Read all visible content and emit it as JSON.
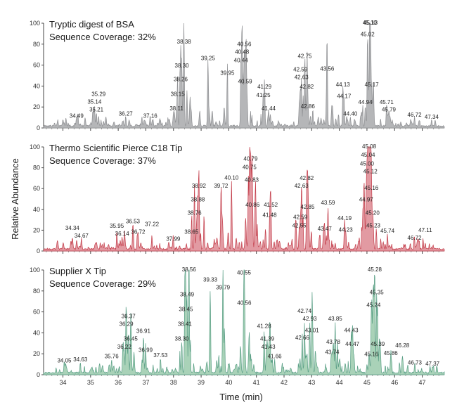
{
  "chart_data": {
    "type": "area",
    "xlabel": "Time (min)",
    "ylabel": "Relative Abundance",
    "xlim": [
      33.3,
      47.8
    ],
    "ylim": [
      0,
      100
    ],
    "x_ticks": [
      34,
      35,
      36,
      37,
      38,
      39,
      40,
      41,
      42,
      43,
      44,
      45,
      46,
      47
    ],
    "y_ticks": [
      0,
      20,
      40,
      60,
      80,
      100
    ],
    "panels": [
      {
        "title": "Tryptic digest of BSA",
        "subtitle": "Sequence Coverage: 32%",
        "color": "#8f9093",
        "fill": "#b5b6b8",
        "peaks": [
          {
            "label": "34.49",
            "x": 34.49,
            "y": 7
          },
          {
            "label": "35.14",
            "x": 35.14,
            "y": 11
          },
          {
            "label": "35.21",
            "x": 35.21,
            "y": 13
          },
          {
            "label": "35.29",
            "x": 35.29,
            "y": 10
          },
          {
            "label": "36.27",
            "x": 36.27,
            "y": 9
          },
          {
            "label": "37.16",
            "x": 37.16,
            "y": 7
          },
          {
            "label": "38.11",
            "x": 38.11,
            "y": 14
          },
          {
            "label": "38.15",
            "x": 38.15,
            "y": 28
          },
          {
            "label": "38.26",
            "x": 38.26,
            "y": 42
          },
          {
            "label": "38.30",
            "x": 38.3,
            "y": 55
          },
          {
            "label": "38.38",
            "x": 38.38,
            "y": 78
          },
          {
            "label": "39.25",
            "x": 39.25,
            "y": 62
          },
          {
            "label": "39.95",
            "x": 39.95,
            "y": 48
          },
          {
            "label": "40.44",
            "x": 40.44,
            "y": 60
          },
          {
            "label": "40.48",
            "x": 40.48,
            "y": 68
          },
          {
            "label": "40.56",
            "x": 40.56,
            "y": 62
          },
          {
            "label": "40.59",
            "x": 40.59,
            "y": 40
          },
          {
            "label": "41.25",
            "x": 41.25,
            "y": 27
          },
          {
            "label": "41.29",
            "x": 41.29,
            "y": 35
          },
          {
            "label": "41.44",
            "x": 41.44,
            "y": 14
          },
          {
            "label": "42.59",
            "x": 42.59,
            "y": 32
          },
          {
            "label": "42.63",
            "x": 42.63,
            "y": 44
          },
          {
            "label": "42.75",
            "x": 42.75,
            "y": 64
          },
          {
            "label": "42.82",
            "x": 42.82,
            "y": 35
          },
          {
            "label": "42.86",
            "x": 42.86,
            "y": 16
          },
          {
            "label": "43.56",
            "x": 43.56,
            "y": 52
          },
          {
            "label": "44.13",
            "x": 44.13,
            "y": 37
          },
          {
            "label": "44.17",
            "x": 44.17,
            "y": 26
          },
          {
            "label": "44.40",
            "x": 44.4,
            "y": 9
          },
          {
            "label": "44.94",
            "x": 44.94,
            "y": 20
          },
          {
            "label": "45.02",
            "x": 45.02,
            "y": 85
          },
          {
            "label": "45.10",
            "x": 45.1,
            "y": 100
          },
          {
            "label": "45.13",
            "x": 45.13,
            "y": 82
          },
          {
            "label": "45.17",
            "x": 45.17,
            "y": 37
          },
          {
            "label": "45.71",
            "x": 45.71,
            "y": 20
          },
          {
            "label": "45.79",
            "x": 45.79,
            "y": 13
          },
          {
            "label": "46.72",
            "x": 46.72,
            "y": 8
          },
          {
            "label": "47.34",
            "x": 47.34,
            "y": 6
          }
        ]
      },
      {
        "title": "Thermo Scientific Pierce C18 Tip",
        "subtitle": "Sequence Coverage: 37%",
        "color": "#c33d4a",
        "fill": "#e29aa2",
        "peaks": [
          {
            "label": "34.34",
            "x": 34.34,
            "y": 8
          },
          {
            "label": "34.67",
            "x": 34.67,
            "y": 10
          },
          {
            "label": "35.95",
            "x": 35.95,
            "y": 8
          },
          {
            "label": "36.14",
            "x": 36.14,
            "y": 12
          },
          {
            "label": "36.53",
            "x": 36.53,
            "y": 24
          },
          {
            "label": "36.72",
            "x": 36.72,
            "y": 14
          },
          {
            "label": "37.22",
            "x": 37.22,
            "y": 13
          },
          {
            "label": "37.99",
            "x": 37.99,
            "y": 7
          },
          {
            "label": "38.65",
            "x": 38.65,
            "y": 14
          },
          {
            "label": "38.76",
            "x": 38.76,
            "y": 32
          },
          {
            "label": "38.88",
            "x": 38.88,
            "y": 45
          },
          {
            "label": "38.92",
            "x": 38.92,
            "y": 58
          },
          {
            "label": "39.72",
            "x": 39.72,
            "y": 58
          },
          {
            "label": "40.10",
            "x": 40.1,
            "y": 66
          },
          {
            "label": "40.75",
            "x": 40.75,
            "y": 76
          },
          {
            "label": "40.79",
            "x": 40.79,
            "y": 84
          },
          {
            "label": "40.83",
            "x": 40.83,
            "y": 64
          },
          {
            "label": "40.86",
            "x": 40.86,
            "y": 40
          },
          {
            "label": "41.48",
            "x": 41.48,
            "y": 30
          },
          {
            "label": "41.52",
            "x": 41.52,
            "y": 40
          },
          {
            "label": "42.55",
            "x": 42.55,
            "y": 20
          },
          {
            "label": "42.59",
            "x": 42.59,
            "y": 28
          },
          {
            "label": "42.63",
            "x": 42.63,
            "y": 58
          },
          {
            "label": "42.82",
            "x": 42.82,
            "y": 58
          },
          {
            "label": "42.85",
            "x": 42.85,
            "y": 38
          },
          {
            "label": "43.47",
            "x": 43.47,
            "y": 17
          },
          {
            "label": "43.59",
            "x": 43.59,
            "y": 42
          },
          {
            "label": "44.19",
            "x": 44.19,
            "y": 27
          },
          {
            "label": "44.23",
            "x": 44.23,
            "y": 16
          },
          {
            "label": "44.97",
            "x": 44.97,
            "y": 45
          },
          {
            "label": "45.00",
            "x": 45.0,
            "y": 70
          },
          {
            "label": "45.04",
            "x": 45.04,
            "y": 88
          },
          {
            "label": "45.08",
            "x": 45.08,
            "y": 100
          },
          {
            "label": "45.12",
            "x": 45.12,
            "y": 72
          },
          {
            "label": "45.16",
            "x": 45.16,
            "y": 56
          },
          {
            "label": "45.20",
            "x": 45.2,
            "y": 32
          },
          {
            "label": "45.23",
            "x": 45.23,
            "y": 20
          },
          {
            "label": "45.74",
            "x": 45.74,
            "y": 15
          },
          {
            "label": "46.72",
            "x": 46.72,
            "y": 8
          },
          {
            "label": "47.11",
            "x": 47.11,
            "y": 6
          }
        ]
      },
      {
        "title": "Supplier X Tip",
        "subtitle": "Sequence Coverage: 29%",
        "color": "#5a9f86",
        "fill": "#a9d2b8",
        "peaks": [
          {
            "label": "34.05",
            "x": 34.05,
            "y": 9
          },
          {
            "label": "34.63",
            "x": 34.63,
            "y": 10
          },
          {
            "label": "35.76",
            "x": 35.76,
            "y": 13
          },
          {
            "label": "36.22",
            "x": 36.22,
            "y": 22
          },
          {
            "label": "36.29",
            "x": 36.29,
            "y": 44
          },
          {
            "label": "36.45",
            "x": 36.45,
            "y": 30
          },
          {
            "label": "36.37",
            "x": 36.37,
            "y": 40
          },
          {
            "label": "36.91",
            "x": 36.91,
            "y": 26
          },
          {
            "label": "36.99",
            "x": 36.99,
            "y": 19
          },
          {
            "label": "37.53",
            "x": 37.53,
            "y": 14
          },
          {
            "label": "38.30",
            "x": 38.3,
            "y": 30
          },
          {
            "label": "38.41",
            "x": 38.41,
            "y": 44
          },
          {
            "label": "38.45",
            "x": 38.45,
            "y": 58
          },
          {
            "label": "38.49",
            "x": 38.49,
            "y": 72
          },
          {
            "label": "38.56",
            "x": 38.56,
            "y": 100
          },
          {
            "label": "39.33",
            "x": 39.33,
            "y": 78
          },
          {
            "label": "39.79",
            "x": 39.79,
            "y": 79
          },
          {
            "label": "40.55",
            "x": 40.55,
            "y": 93
          },
          {
            "label": "40.56",
            "x": 40.56,
            "y": 64
          },
          {
            "label": "41.28",
            "x": 41.28,
            "y": 42
          },
          {
            "label": "41.39",
            "x": 41.39,
            "y": 30
          },
          {
            "label": "41.43",
            "x": 41.43,
            "y": 22
          },
          {
            "label": "41.66",
            "x": 41.66,
            "y": 13
          },
          {
            "label": "42.66",
            "x": 42.66,
            "y": 31
          },
          {
            "label": "42.74",
            "x": 42.74,
            "y": 48
          },
          {
            "label": "42.93",
            "x": 42.93,
            "y": 49
          },
          {
            "label": "43.01",
            "x": 43.01,
            "y": 38
          },
          {
            "label": "43.78",
            "x": 43.78,
            "y": 27
          },
          {
            "label": "43.74",
            "x": 43.74,
            "y": 17
          },
          {
            "label": "43.85",
            "x": 43.85,
            "y": 49
          },
          {
            "label": "44.43",
            "x": 44.43,
            "y": 38
          },
          {
            "label": "44.47",
            "x": 44.47,
            "y": 25
          },
          {
            "label": "45.16",
            "x": 45.16,
            "y": 15
          },
          {
            "label": "45.24",
            "x": 45.24,
            "y": 62
          },
          {
            "label": "45.28",
            "x": 45.28,
            "y": 100
          },
          {
            "label": "45.35",
            "x": 45.35,
            "y": 74
          },
          {
            "label": "45.39",
            "x": 45.39,
            "y": 25
          },
          {
            "label": "45.86",
            "x": 45.86,
            "y": 16
          },
          {
            "label": "46.28",
            "x": 46.28,
            "y": 10
          },
          {
            "label": "46.73",
            "x": 46.73,
            "y": 7
          },
          {
            "label": "47.37",
            "x": 47.37,
            "y": 6
          }
        ]
      }
    ]
  }
}
